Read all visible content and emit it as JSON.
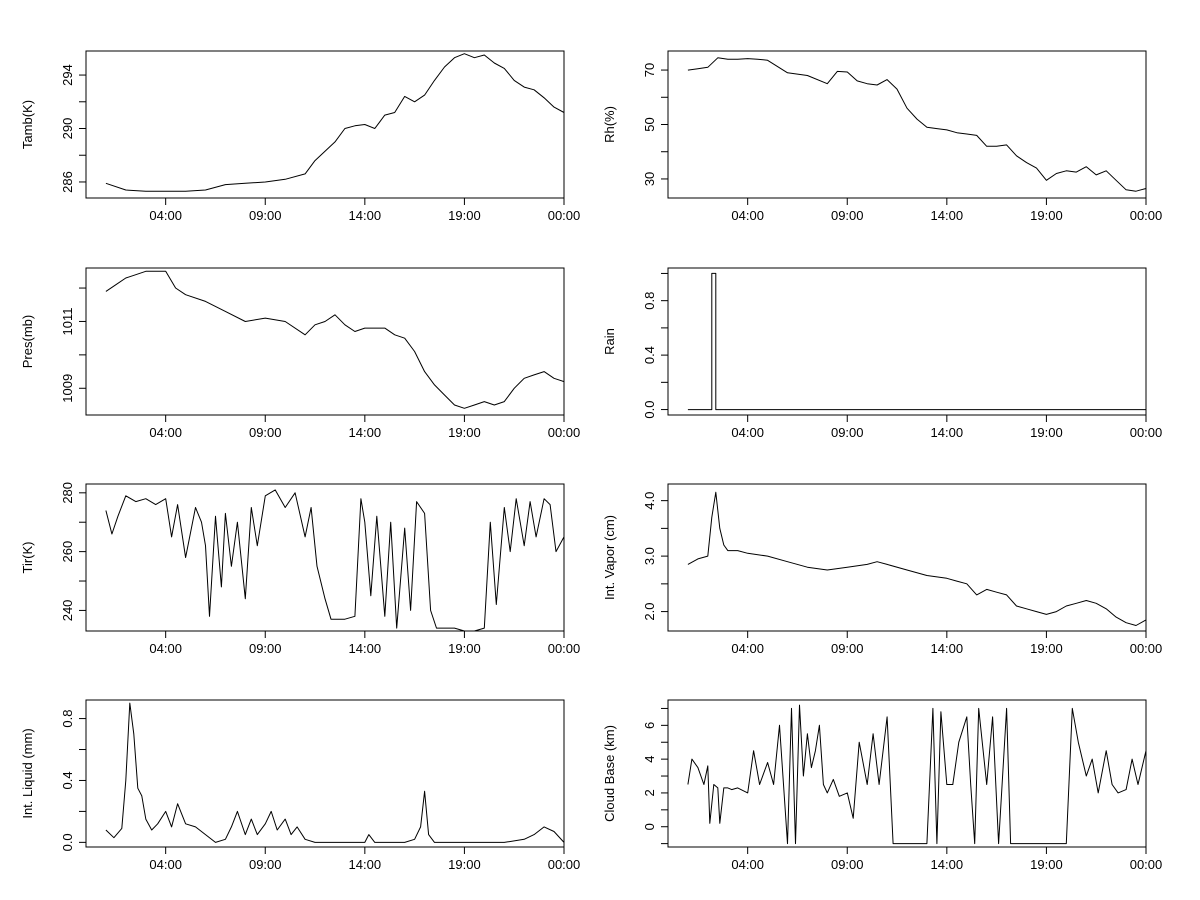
{
  "chart_data": [
    {
      "type": "line",
      "ylabel": "Tamb(K)",
      "xticks": [
        "04:00",
        "09:00",
        "14:00",
        "19:00",
        "00:00"
      ],
      "xlim": [
        0,
        24
      ],
      "ylim": [
        284.8,
        295.8
      ],
      "yticks": [
        286,
        290,
        294
      ],
      "x": [
        1,
        2,
        3,
        4,
        5,
        6,
        7,
        8,
        9,
        10,
        11,
        11.5,
        12,
        12.5,
        13,
        13.5,
        14,
        14.5,
        15,
        15.5,
        16,
        16.5,
        17,
        17.5,
        18,
        18.5,
        19,
        19.5,
        20,
        20.5,
        21,
        21.5,
        22,
        22.5,
        23,
        23.5,
        24
      ],
      "values": [
        285.9,
        285.4,
        285.3,
        285.3,
        285.3,
        285.4,
        285.8,
        285.9,
        286.0,
        286.2,
        286.6,
        287.6,
        288.3,
        289.0,
        290.0,
        290.2,
        290.3,
        290.0,
        291.0,
        291.2,
        292.4,
        292.0,
        292.5,
        293.6,
        294.6,
        295.3,
        295.6,
        295.3,
        295.5,
        294.9,
        294.5,
        293.6,
        293.1,
        292.9,
        292.3,
        291.6,
        291.2
      ]
    },
    {
      "type": "line",
      "ylabel": "Rh(%)",
      "xticks": [
        "04:00",
        "09:00",
        "14:00",
        "19:00",
        "00:00"
      ],
      "xlim": [
        0,
        24
      ],
      "ylim": [
        23,
        77
      ],
      "yticks": [
        30,
        50,
        70
      ],
      "x": [
        1,
        1.5,
        2,
        2.5,
        3,
        3.5,
        4,
        4.5,
        5,
        6,
        7,
        8,
        8.5,
        9,
        9.5,
        10,
        10.5,
        11,
        11.5,
        12,
        12.5,
        13,
        13.5,
        14,
        14.5,
        15,
        15.5,
        16,
        16.5,
        17,
        17.5,
        18,
        18.5,
        19,
        19.5,
        20,
        20.5,
        21,
        21.5,
        22,
        22.5,
        23,
        23.5,
        24
      ],
      "values": [
        70,
        70.5,
        71,
        74.5,
        74,
        74,
        74.2,
        74,
        73.6,
        69,
        68,
        65,
        69.5,
        69.3,
        66,
        65,
        64.5,
        66.5,
        63,
        56,
        52,
        49,
        48.5,
        48,
        47,
        46.5,
        46,
        42,
        42,
        42.5,
        38.5,
        36,
        34,
        29.5,
        32,
        33,
        32.5,
        34.5,
        31.5,
        33,
        29.5,
        26,
        25.5,
        26.5
      ]
    },
    {
      "type": "line",
      "ylabel": "Pres(mb)",
      "xticks": [
        "04:00",
        "09:00",
        "14:00",
        "19:00",
        "00:00"
      ],
      "xlim": [
        0,
        24
      ],
      "ylim": [
        1008.2,
        1012.6
      ],
      "yticks": [
        1009,
        1011
      ],
      "x": [
        1,
        1.5,
        2,
        2.5,
        3,
        3.5,
        4,
        4.5,
        5,
        6,
        7,
        8,
        9,
        10,
        11,
        11.5,
        12,
        12.5,
        13,
        13.5,
        14,
        14.5,
        15,
        15.5,
        16,
        16.5,
        17,
        17.5,
        18,
        18.5,
        19,
        19.5,
        20,
        20.5,
        21,
        21.5,
        22,
        22.5,
        23,
        23.5,
        24
      ],
      "values": [
        1011.9,
        1012.1,
        1012.3,
        1012.4,
        1012.5,
        1012.5,
        1012.5,
        1012.0,
        1011.8,
        1011.6,
        1011.3,
        1011.0,
        1011.1,
        1011.0,
        1010.6,
        1010.9,
        1011.0,
        1011.2,
        1010.9,
        1010.7,
        1010.8,
        1010.8,
        1010.8,
        1010.6,
        1010.5,
        1010.1,
        1009.5,
        1009.1,
        1008.8,
        1008.5,
        1008.4,
        1008.5,
        1008.6,
        1008.5,
        1008.6,
        1009.0,
        1009.3,
        1009.4,
        1009.5,
        1009.3,
        1009.2
      ]
    },
    {
      "type": "line",
      "ylabel": "Rain",
      "xticks": [
        "04:00",
        "09:00",
        "14:00",
        "19:00",
        "00:00"
      ],
      "xlim": [
        0,
        24
      ],
      "ylim": [
        -0.04,
        1.04
      ],
      "yticks": [
        0.0,
        0.4,
        0.8
      ],
      "x": [
        1,
        2.2,
        2.2,
        2.4,
        2.4,
        24
      ],
      "values": [
        0,
        0,
        1,
        1,
        0,
        0
      ]
    },
    {
      "type": "line",
      "ylabel": "Tir(K)",
      "xticks": [
        "04:00",
        "09:00",
        "14:00",
        "19:00",
        "00:00"
      ],
      "xlim": [
        0,
        24
      ],
      "ylim": [
        233,
        283
      ],
      "yticks": [
        240,
        260,
        280
      ],
      "x": [
        1,
        1.3,
        1.6,
        2,
        2.5,
        3,
        3.5,
        4,
        4.3,
        4.6,
        5,
        5.5,
        5.8,
        6,
        6.2,
        6.5,
        6.8,
        7,
        7.3,
        7.6,
        8,
        8.3,
        8.6,
        9,
        9.5,
        10,
        10.5,
        11,
        11.3,
        11.6,
        12,
        12.3,
        12.6,
        13,
        13.5,
        13.8,
        14,
        14.3,
        14.6,
        15,
        15.3,
        15.6,
        16,
        16.3,
        16.6,
        17,
        17.3,
        17.6,
        18,
        18.5,
        19,
        19.5,
        20,
        20.3,
        20.6,
        21,
        21.3,
        21.6,
        22,
        22.3,
        22.6,
        23,
        23.3,
        23.6,
        24
      ],
      "values": [
        274,
        266,
        272,
        279,
        277,
        278,
        276,
        278,
        265,
        276,
        258,
        275,
        270,
        262,
        238,
        272,
        248,
        273,
        255,
        270,
        244,
        275,
        262,
        279,
        281,
        275,
        280,
        265,
        275,
        255,
        244,
        237,
        237,
        237,
        238,
        278,
        270,
        245,
        272,
        238,
        270,
        234,
        268,
        240,
        277,
        273,
        240,
        234,
        234,
        234,
        233,
        233,
        234,
        270,
        242,
        275,
        260,
        278,
        262,
        277,
        265,
        278,
        276,
        260,
        265
      ]
    },
    {
      "type": "line",
      "ylabel": "Int. Vapor (cm)",
      "xticks": [
        "04:00",
        "09:00",
        "14:00",
        "19:00",
        "00:00"
      ],
      "xlim": [
        0,
        24
      ],
      "ylim": [
        1.65,
        4.3
      ],
      "yticks": [
        2.0,
        3.0,
        4.0
      ],
      "x": [
        1,
        1.5,
        2,
        2.2,
        2.4,
        2.6,
        2.8,
        3,
        3.5,
        4,
        5,
        6,
        7,
        8,
        9,
        10,
        10.5,
        11,
        12,
        13,
        14,
        14.5,
        15,
        15.5,
        16,
        16.5,
        17,
        17.5,
        18,
        18.5,
        19,
        19.5,
        20,
        20.5,
        21,
        21.5,
        22,
        22.5,
        23,
        23.5,
        24
      ],
      "values": [
        2.85,
        2.95,
        3.0,
        3.7,
        4.15,
        3.5,
        3.2,
        3.1,
        3.1,
        3.05,
        3.0,
        2.9,
        2.8,
        2.75,
        2.8,
        2.85,
        2.9,
        2.85,
        2.75,
        2.65,
        2.6,
        2.55,
        2.5,
        2.3,
        2.4,
        2.35,
        2.3,
        2.1,
        2.05,
        2.0,
        1.95,
        2.0,
        2.1,
        2.15,
        2.2,
        2.15,
        2.05,
        1.9,
        1.8,
        1.75,
        1.85
      ]
    },
    {
      "type": "line",
      "ylabel": "Int. Liquid (mm)",
      "xticks": [
        "04:00",
        "09:00",
        "14:00",
        "19:00",
        "00:00"
      ],
      "xlim": [
        0,
        24
      ],
      "ylim": [
        -0.03,
        0.92
      ],
      "yticks": [
        0.0,
        0.4,
        0.8
      ],
      "x": [
        1,
        1.4,
        1.8,
        2,
        2.2,
        2.4,
        2.6,
        2.8,
        3,
        3.3,
        3.6,
        4,
        4.3,
        4.6,
        5,
        5.5,
        6,
        6.5,
        7,
        7.3,
        7.6,
        8,
        8.3,
        8.6,
        9,
        9.3,
        9.6,
        10,
        10.3,
        10.6,
        11,
        11.5,
        12,
        13,
        14,
        14.2,
        14.5,
        15,
        16,
        16.5,
        16.8,
        17,
        17.2,
        17.5,
        18,
        19,
        20,
        21,
        22,
        22.5,
        23,
        23.5,
        24
      ],
      "values": [
        0.08,
        0.03,
        0.09,
        0.4,
        0.9,
        0.7,
        0.35,
        0.3,
        0.15,
        0.08,
        0.12,
        0.2,
        0.1,
        0.25,
        0.12,
        0.1,
        0.05,
        0.0,
        0.02,
        0.1,
        0.2,
        0.05,
        0.15,
        0.05,
        0.12,
        0.2,
        0.08,
        0.15,
        0.05,
        0.1,
        0.02,
        0.0,
        0.0,
        0.0,
        0.0,
        0.05,
        0.0,
        0.0,
        0.0,
        0.02,
        0.1,
        0.33,
        0.05,
        0.0,
        0.0,
        0.0,
        0.0,
        0.0,
        0.02,
        0.05,
        0.1,
        0.07,
        0.0
      ]
    },
    {
      "type": "line",
      "ylabel": "Cloud Base (km)",
      "xticks": [
        "04:00",
        "09:00",
        "14:00",
        "19:00",
        "00:00"
      ],
      "xlim": [
        0,
        24
      ],
      "ylim": [
        -1.2,
        7.5
      ],
      "yticks": [
        0,
        2,
        4,
        6
      ],
      "x": [
        1,
        1.2,
        1.5,
        1.8,
        2,
        2.1,
        2.3,
        2.5,
        2.6,
        2.8,
        3,
        3.2,
        3.5,
        4,
        4.3,
        4.6,
        5,
        5.3,
        5.6,
        6,
        6.2,
        6.4,
        6.6,
        6.8,
        7,
        7.2,
        7.4,
        7.6,
        7.8,
        8,
        8.3,
        8.6,
        9,
        9.3,
        9.6,
        10,
        10.3,
        10.6,
        11,
        11.3,
        11.6,
        12,
        12.3,
        12.6,
        13,
        13.3,
        13.5,
        13.7,
        14,
        14.3,
        14.6,
        15,
        15.2,
        15.4,
        15.6,
        16,
        16.3,
        16.6,
        17,
        17.2,
        17.4,
        17.7,
        18,
        19,
        20,
        20.3,
        20.6,
        21,
        21.3,
        21.6,
        22,
        22.3,
        22.6,
        23,
        23.3,
        23.6,
        24
      ],
      "values": [
        2.5,
        4,
        3.5,
        2.5,
        3.6,
        0.2,
        2.5,
        2.3,
        0.2,
        2.3,
        2.3,
        2.2,
        2.3,
        2,
        4.5,
        2.5,
        3.8,
        2.5,
        6,
        -1,
        7,
        -1,
        7.2,
        3,
        5.5,
        3.5,
        4.5,
        6,
        2.5,
        2,
        2.8,
        1.8,
        2,
        0.5,
        5,
        2.5,
        5.5,
        2.5,
        6.5,
        -1,
        -1,
        -1,
        -1,
        -1,
        -1,
        7,
        -1,
        6.8,
        2.5,
        2.5,
        5,
        6.5,
        2.5,
        -1,
        7,
        2.5,
        6.5,
        -1,
        7,
        -1,
        -1,
        -1,
        -1,
        -1,
        -1,
        7,
        5,
        3,
        4,
        2,
        4.5,
        2.5,
        2,
        2.2,
        4,
        2.5,
        4.5
      ]
    }
  ]
}
